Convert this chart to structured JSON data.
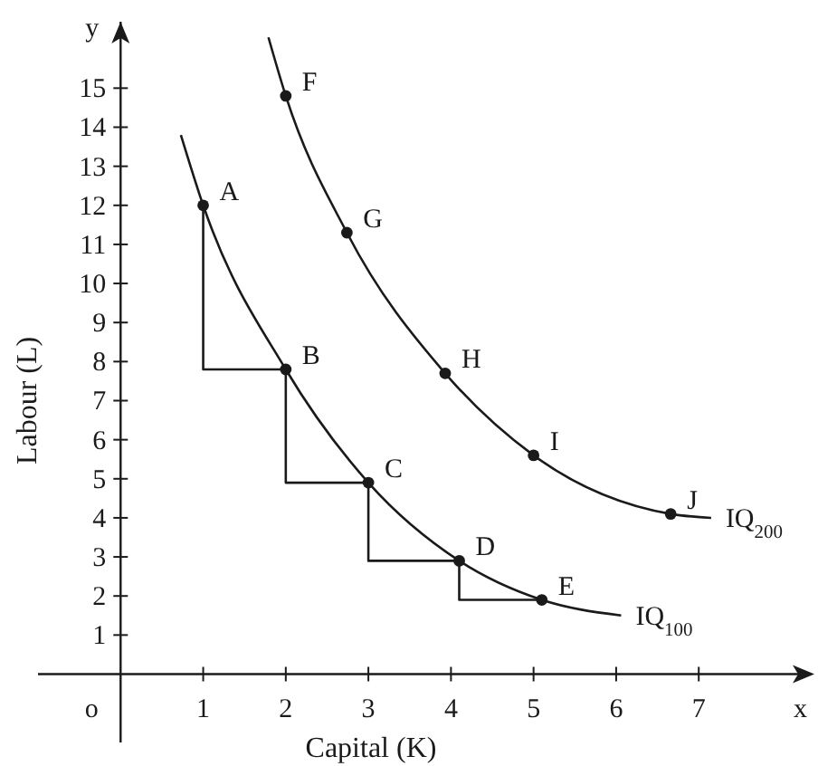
{
  "chart_data": {
    "type": "line",
    "xlabel": "Capital (K)",
    "ylabel": "Labour (L)",
    "xlim": [
      -1,
      8.4
    ],
    "ylim": [
      -1.75,
      16.7
    ],
    "xticks": [
      1,
      2,
      3,
      4,
      5,
      6,
      7
    ],
    "yticks": [
      1,
      2,
      3,
      4,
      5,
      6,
      7,
      8,
      9,
      10,
      11,
      12,
      13,
      14,
      15
    ],
    "grid": false,
    "series": [
      {
        "name": "IQ$_{100}$",
        "color": "#1a1a1a",
        "x": [
          0.73,
          1,
          2,
          3,
          4.1,
          5.1,
          6.06
        ],
        "values": [
          13.8,
          12,
          7.8,
          4.9,
          2.9,
          1.9,
          1.5
        ]
      },
      {
        "name": "IQ$_{200}$",
        "color": "#1a1a1a",
        "x": [
          1.79,
          2,
          2.74,
          3.93,
          5,
          6.66,
          7.15
        ],
        "values": [
          16.3,
          14.8,
          11.3,
          7.7,
          5.6,
          4.1,
          4.0
        ]
      },
      {
        "type": "step",
        "color": "#1a1a1a",
        "x": [
          1,
          2,
          3,
          4.1,
          5.1
        ],
        "values": [
          12,
          7.8,
          4.9,
          2.9,
          1.9
        ]
      },
      {
        "type": "scatter",
        "color": "#1a1a1a",
        "marker": "circle",
        "x": [
          1,
          2,
          3,
          4.1,
          5.1,
          2,
          2.74,
          3.93,
          5,
          6.66
        ],
        "values": [
          12,
          7.8,
          4.9,
          2.9,
          1.9,
          14.8,
          11.3,
          7.7,
          5.6,
          4.1
        ]
      }
    ],
    "annotations": [
      {
        "text": "A",
        "x": 1,
        "y": 12
      },
      {
        "text": "B",
        "x": 2,
        "y": 7.8
      },
      {
        "text": "C",
        "x": 3,
        "y": 4.9
      },
      {
        "text": "D",
        "x": 4.1,
        "y": 2.9
      },
      {
        "text": "E",
        "x": 5.1,
        "y": 1.9
      },
      {
        "text": "F",
        "x": 2,
        "y": 14.8
      },
      {
        "text": "G",
        "x": 2.74,
        "y": 11.3
      },
      {
        "text": "H",
        "x": 3.93,
        "y": 7.7
      },
      {
        "text": "I",
        "x": 5,
        "y": 5.6
      },
      {
        "text": "J",
        "x": 6.66,
        "y": 4.1
      },
      "o",
      "x",
      "y"
    ]
  }
}
